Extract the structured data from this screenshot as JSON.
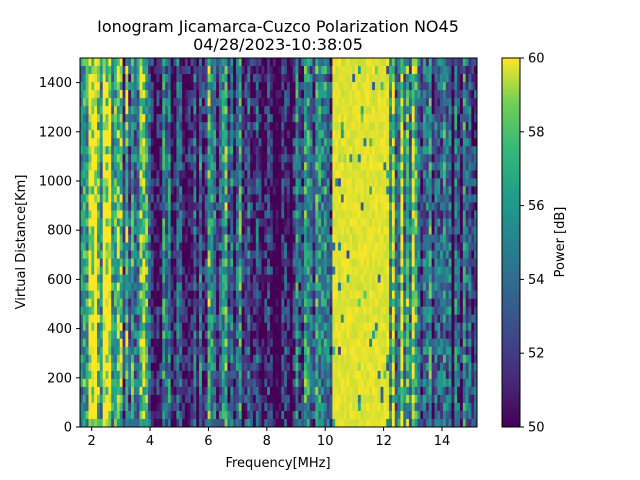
{
  "chart_data": {
    "type": "heatmap",
    "title": "Ionogram Jicamarca-Cuzco Polarization NO45",
    "subtitle": "04/28/2023-10:38:05",
    "xlabel": "Frequency[MHz]",
    "ylabel": "Virtual Distance[Km]",
    "xlim": [
      1.6,
      15.2
    ],
    "ylim": [
      0,
      1500
    ],
    "xticks": [
      2,
      4,
      6,
      8,
      10,
      12,
      14
    ],
    "yticks": [
      0,
      200,
      400,
      600,
      800,
      1000,
      1200,
      1400
    ],
    "colorbar": {
      "label": "Power [dB]",
      "range": [
        50,
        60
      ],
      "ticks": [
        50,
        52,
        54,
        56,
        58,
        60
      ],
      "colormap": "viridis"
    },
    "frequency_bands_mhz": [
      {
        "from": 1.6,
        "to": 2.8,
        "mean_power_db": 58.5
      },
      {
        "from": 2.8,
        "to": 4.0,
        "mean_power_db": 55.0
      },
      {
        "from": 4.0,
        "to": 5.8,
        "mean_power_db": 52.5
      },
      {
        "from": 5.8,
        "to": 7.4,
        "mean_power_db": 54.0
      },
      {
        "from": 7.4,
        "to": 8.9,
        "mean_power_db": 51.5
      },
      {
        "from": 8.9,
        "to": 10.2,
        "mean_power_db": 54.5
      },
      {
        "from": 10.2,
        "to": 12.2,
        "mean_power_db": 60.0
      },
      {
        "from": 12.2,
        "to": 13.2,
        "mean_power_db": 57.0
      },
      {
        "from": 13.2,
        "to": 15.2,
        "mean_power_db": 53.0
      }
    ]
  }
}
